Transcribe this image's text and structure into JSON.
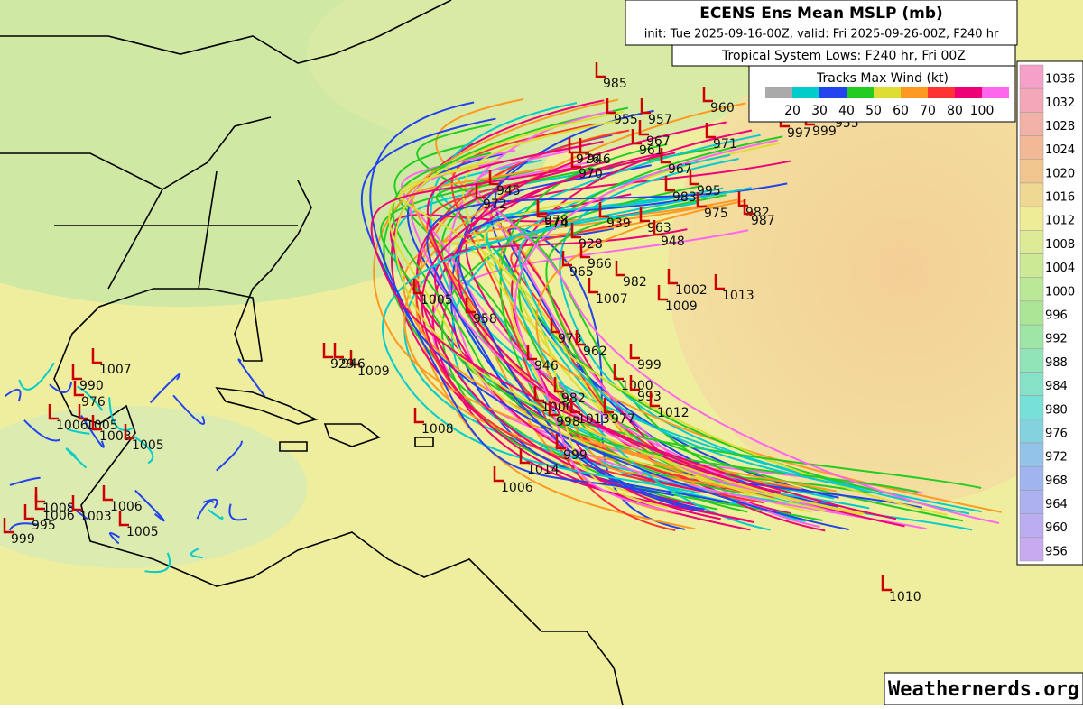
{
  "header": {
    "title": "ECENS Ens Mean MSLP (mb)",
    "subtitle": "init: Tue 2025-09-16-00Z, valid: Fri 2025-09-26-00Z, F240 hr"
  },
  "legend": {
    "title": "Tropical System Lows: F240 hr, Fri 00Z",
    "wind_title": "Tracks Max Wind (kt)",
    "wind_levels": [
      20,
      30,
      40,
      50,
      60,
      70,
      80,
      100
    ]
  },
  "colorbar": {
    "levels": [
      1036,
      1032,
      1028,
      1024,
      1020,
      1016,
      1012,
      1008,
      1004,
      1000,
      996,
      992,
      988,
      984,
      980,
      976,
      972,
      968,
      964,
      960,
      956
    ]
  },
  "lows": [
    "985",
    "955",
    "957",
    "960",
    "971",
    "967",
    "961",
    "976",
    "946",
    "970",
    "967",
    "995",
    "983",
    "975",
    "982",
    "987",
    "945",
    "972",
    "978",
    "974",
    "939",
    "963",
    "948",
    "928",
    "966",
    "965",
    "982",
    "1007",
    "1002",
    "1009",
    "1013",
    "1005",
    "958",
    "973",
    "962",
    "946",
    "999",
    "1009",
    "929",
    "946",
    "1000",
    "993",
    "982",
    "1000",
    "998",
    "1013",
    "977",
    "1012",
    "1008",
    "999",
    "1014",
    "1006",
    "1007",
    "990",
    "976",
    "1005",
    "1006",
    "1003",
    "1005",
    "1006",
    "1008",
    "1006",
    "1003",
    "995",
    "999",
    "1005",
    "1010",
    "997",
    "999",
    "955"
  ],
  "watermark": "Weathernerds.org"
}
